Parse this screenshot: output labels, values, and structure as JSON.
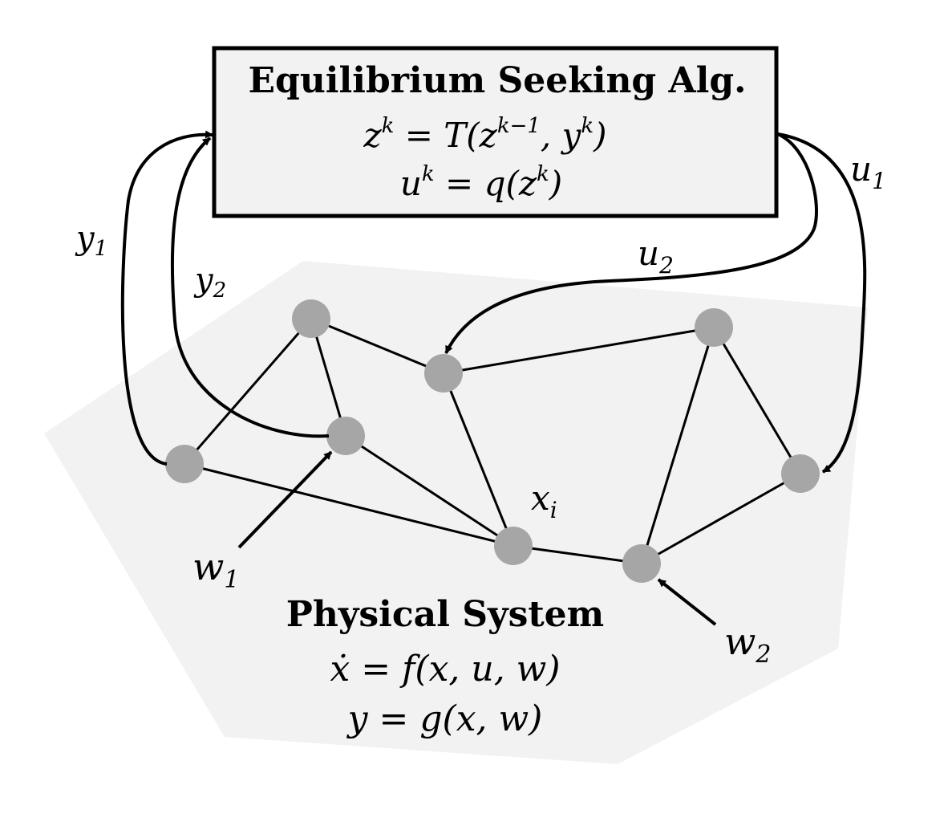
{
  "algorithm_box": {
    "title": "Equilibrium Seeking Alg.",
    "eq1": {
      "lhs": "z",
      "lhs_sup": "k",
      "rhs_a": " = T(z",
      "rhs_sup1": "k−1",
      "rhs_b": ", y",
      "rhs_sup2": "k",
      "rhs_c": ")"
    },
    "eq2": {
      "lhs": "u",
      "lhs_sup": "k",
      "rhs_a": " = q(z",
      "rhs_sup": "k",
      "rhs_b": ")"
    }
  },
  "physical_system": {
    "title": "Physical System",
    "eq1": {
      "lhs": "ẋ",
      "rhs": " = f(x, u, w)"
    },
    "eq2": {
      "lhs": "y",
      "rhs": " = g(x, w)"
    }
  },
  "signals": {
    "y1": {
      "base": "y",
      "sub": "1"
    },
    "y2": {
      "base": "y",
      "sub": "2"
    },
    "u1": {
      "base": "u",
      "sub": "1"
    },
    "u2": {
      "base": "u",
      "sub": "2"
    },
    "w1": {
      "base": "w",
      "sub": "1"
    },
    "w2": {
      "base": "w",
      "sub": "2"
    },
    "xi": {
      "base": "x",
      "sub": "i"
    }
  },
  "colors": {
    "box_fill": "#f2f2f2",
    "plane_fill": "#f2f2f2",
    "node_fill": "#a6a6a6",
    "stroke": "#000000"
  }
}
